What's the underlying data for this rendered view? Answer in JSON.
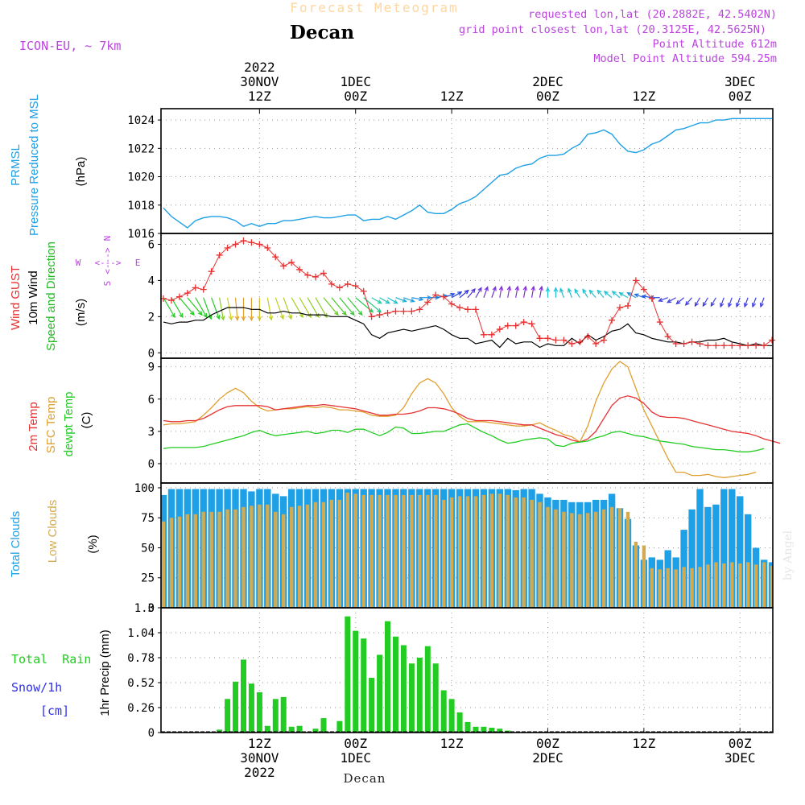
{
  "header": {
    "product": "Forecast Meteogram",
    "location": "Decan",
    "model": "ICON-EU, ~ 7km",
    "requested": "requested lon,lat (20.2882E, 42.5402N)",
    "gridpoint": "grid point closest lon,lat (20.3125E, 42.5625N)",
    "point_alt": "Point Altitude 612m",
    "model_alt": "Model Point Altitude 594.25m",
    "footer": "Decan",
    "credit": "by Angel"
  },
  "colors": {
    "pressure": "#1ea0e6",
    "gust": "#e63232",
    "wind": "#000000",
    "dir": "#22bb22",
    "t2m": "#e63232",
    "tsfc": "#e0a030",
    "dew": "#22cc22",
    "total_cloud": "#1ea0e6",
    "low_cloud": "#d4aa50",
    "rain": "#22cc22",
    "snow": "#3030e6",
    "compass": "#bb44dd"
  },
  "time_axis": {
    "top_labels": [
      {
        "h": 12,
        "lines": [
          "2022",
          "30NOV",
          "12Z"
        ]
      },
      {
        "h": 24,
        "lines": [
          "1DEC",
          "00Z"
        ]
      },
      {
        "h": 36,
        "lines": [
          "12Z"
        ]
      },
      {
        "h": 48,
        "lines": [
          "2DEC",
          "00Z"
        ]
      },
      {
        "h": 60,
        "lines": [
          "12Z"
        ]
      },
      {
        "h": 72,
        "lines": [
          "3DEC",
          "00Z"
        ]
      }
    ],
    "bottom_labels": [
      {
        "h": 12,
        "lines": [
          "12Z",
          "30NOV",
          "2022"
        ]
      },
      {
        "h": 24,
        "lines": [
          "00Z",
          "1DEC"
        ]
      },
      {
        "h": 36,
        "lines": [
          "12Z"
        ]
      },
      {
        "h": 48,
        "lines": [
          "00Z",
          "2DEC"
        ]
      },
      {
        "h": 60,
        "lines": [
          "12Z"
        ]
      },
      {
        "h": 72,
        "lines": [
          "00Z",
          "3DEC"
        ]
      }
    ],
    "hours_per_step": 1,
    "start_hour": 0,
    "end_hour": 76
  },
  "chart_data": [
    {
      "type": "line",
      "panel": "pressure",
      "ylabel": [
        "PRMSL",
        "Pressure Reduced to MSL"
      ],
      "units": "(hPa)",
      "yticks": [
        1016,
        1018,
        1020,
        1022,
        1024
      ],
      "ylim": [
        1016,
        1024.8
      ],
      "series": [
        {
          "values": [
            1017.8,
            1017.2,
            1016.8,
            1016.4,
            1016.9,
            1017.1,
            1017.2,
            1017.2,
            1017.1,
            1016.9,
            1016.5,
            1016.7,
            1016.5,
            1016.7,
            1016.7,
            1016.9,
            1016.9,
            1017.0,
            1017.1,
            1017.2,
            1017.1,
            1017.1,
            1017.2,
            1017.3,
            1017.3,
            1016.9,
            1017.0,
            1017.0,
            1017.2,
            1017.0,
            1017.3,
            1017.6,
            1018.0,
            1017.5,
            1017.4,
            1017.4,
            1017.7,
            1018.1,
            1018.3,
            1018.6,
            1019.1,
            1019.6,
            1020.1,
            1020.2,
            1020.6,
            1020.8,
            1020.9,
            1021.3,
            1021.5,
            1021.5,
            1021.6,
            1022.0,
            1022.3,
            1023.0,
            1023.1,
            1023.3,
            1023.0,
            1022.3,
            1021.8,
            1021.7,
            1021.9,
            1022.3,
            1022.5,
            1022.9,
            1023.3,
            1023.4,
            1023.6,
            1023.8,
            1023.8,
            1024.0,
            1024.0,
            1024.1,
            1024.1,
            1024.1,
            1024.1,
            1024.1,
            1024.1
          ]
        }
      ]
    },
    {
      "type": "line",
      "panel": "wind",
      "ylabel": [
        "Wind GUST",
        "10m Wind",
        "Speed and Direction"
      ],
      "units": "(m/s)",
      "yticks": [
        0,
        2,
        4,
        6
      ],
      "ylim": [
        -0.3,
        6.6
      ],
      "compass": {
        "w": "W",
        "e": "E",
        "n": "N",
        "s": "S",
        "arrow": "<--->"
      },
      "series": [
        {
          "name": "Wind GUST",
          "values": [
            3.0,
            2.9,
            3.1,
            3.3,
            3.6,
            3.5,
            4.5,
            5.4,
            5.8,
            6.0,
            6.2,
            6.1,
            6.0,
            5.8,
            5.3,
            4.8,
            5.0,
            4.6,
            4.3,
            4.2,
            4.4,
            3.8,
            3.6,
            3.8,
            3.7,
            3.4,
            2.0,
            2.1,
            2.2,
            2.3,
            2.3,
            2.3,
            2.4,
            2.8,
            3.2,
            3.1,
            2.7,
            2.5,
            2.4,
            2.4,
            1.0,
            1.0,
            1.3,
            1.5,
            1.5,
            1.7,
            1.6,
            0.8,
            0.8,
            0.7,
            0.7,
            0.5,
            0.6,
            0.9,
            0.5,
            0.7,
            1.8,
            2.5,
            2.6,
            4.0,
            3.5,
            3.0,
            1.7,
            0.9,
            0.5,
            0.5,
            0.6,
            0.5,
            0.4,
            0.4,
            0.4,
            0.4,
            0.4,
            0.4,
            0.4,
            0.4,
            0.7
          ]
        },
        {
          "name": "10m Wind",
          "values": [
            1.7,
            1.6,
            1.7,
            1.7,
            1.8,
            1.8,
            2.1,
            2.3,
            2.5,
            2.5,
            2.5,
            2.4,
            2.4,
            2.2,
            2.2,
            2.3,
            2.2,
            2.2,
            2.1,
            2.1,
            2.1,
            2.0,
            2.0,
            2.0,
            1.8,
            1.6,
            1.0,
            0.8,
            1.1,
            1.2,
            1.3,
            1.2,
            1.3,
            1.4,
            1.5,
            1.3,
            1.0,
            0.8,
            0.8,
            0.5,
            0.6,
            0.7,
            0.3,
            0.8,
            0.5,
            0.6,
            0.6,
            0.3,
            0.5,
            0.4,
            0.4,
            0.8,
            0.5,
            1.0,
            0.7,
            0.9,
            1.2,
            1.3,
            1.6,
            1.1,
            1.0,
            0.8,
            0.7,
            0.6,
            0.6,
            0.5,
            0.6,
            0.6,
            0.7,
            0.7,
            0.8,
            0.6,
            0.5,
            0.4,
            0.5,
            0.4,
            0.4
          ]
        },
        {
          "name": "Direction",
          "degrees": [
            330,
            330,
            320,
            320,
            330,
            340,
            340,
            350,
            350,
            355,
            0,
            0,
            0,
            350,
            340,
            340,
            330,
            330,
            330,
            330,
            320,
            320,
            320,
            320,
            310,
            310,
            300,
            300,
            300,
            290,
            290,
            280,
            270,
            270,
            260,
            250,
            240,
            230,
            220,
            210,
            200,
            200,
            190,
            190,
            190,
            190,
            190,
            190,
            180,
            180,
            160,
            160,
            150,
            150,
            140,
            140,
            130,
            130,
            120,
            120,
            110,
            100,
            90,
            70,
            60,
            50,
            40,
            30,
            30,
            30,
            20,
            20,
            20,
            20,
            20,
            20,
            20
          ],
          "colors": [
            "#22cc22",
            "#22cc22",
            "#22cc22",
            "#22cc22",
            "#22cc22",
            "#22cc22",
            "#22cc22",
            "#88cc22",
            "#d0d020",
            "#e0a030",
            "#e0a030",
            "#e0a030",
            "#d0c030",
            "#c0d020",
            "#c0d020",
            "#b0d020",
            "#a0d020",
            "#a0d020",
            "#88cc22",
            "#88cc22",
            "#66cc22",
            "#44cc22",
            "#33cc33",
            "#33cc33",
            "#22cc55",
            "#22cc88",
            "#22ccaa",
            "#20c0c0",
            "#20c0d0",
            "#20b0d0",
            "#20a0d8",
            "#2090e0",
            "#2090e0",
            "#2090e0",
            "#2070e0",
            "#2050e0",
            "#2040e0",
            "#3030e0",
            "#5030e0",
            "#6030e0",
            "#7030d8",
            "#7030d8",
            "#8030d0",
            "#8030d0",
            "#8030d0",
            "#8030d0",
            "#8030d0",
            "#8030d0",
            "#20c0d0",
            "#20c0d0",
            "#20c0d0",
            "#20c0d0",
            "#20c0d0",
            "#20c0d0",
            "#20c0d0",
            "#20c0d0",
            "#20c0d0",
            "#20c0d0",
            "#20c0d0",
            "#2090e0",
            "#2070e0",
            "#2050e0",
            "#2050e0",
            "#4040e0",
            "#4040e0",
            "#4040e0",
            "#4040e0",
            "#4040e0",
            "#4040e0",
            "#4040e0",
            "#4040e0",
            "#4040e0",
            "#4040e0",
            "#4040e0",
            "#4040e0",
            "#4040e0",
            "#4040e0"
          ]
        }
      ]
    },
    {
      "type": "line",
      "panel": "temperature",
      "ylabel": [
        "2m Temp",
        "SFC Temp",
        "dewpt Temp"
      ],
      "units": "(C)",
      "yticks": [
        0,
        3,
        6,
        9
      ],
      "ylim": [
        -1.8,
        9.8
      ],
      "series": [
        {
          "name": "2m Temp",
          "values": [
            4.0,
            3.9,
            3.9,
            4.0,
            4.0,
            4.2,
            4.6,
            5.0,
            5.3,
            5.4,
            5.4,
            5.4,
            5.4,
            5.3,
            5.0,
            5.1,
            5.2,
            5.3,
            5.4,
            5.4,
            5.5,
            5.4,
            5.3,
            5.2,
            5.1,
            4.9,
            4.7,
            4.5,
            4.5,
            4.6,
            4.6,
            4.7,
            4.9,
            5.2,
            5.2,
            5.1,
            4.9,
            4.6,
            4.2,
            4.0,
            4.0,
            4.0,
            3.9,
            3.8,
            3.7,
            3.6,
            3.6,
            3.3,
            3.0,
            2.7,
            2.5,
            2.2,
            2.0,
            2.3,
            3.0,
            4.2,
            5.4,
            6.1,
            6.3,
            6.1,
            5.6,
            4.8,
            4.4,
            4.3,
            4.3,
            4.2,
            4.0,
            3.8,
            3.6,
            3.4,
            3.2,
            3.0,
            2.9,
            2.8,
            2.6,
            2.3,
            2.1,
            1.9
          ]
        },
        {
          "name": "SFC Temp",
          "values": [
            3.6,
            3.7,
            3.7,
            3.8,
            3.9,
            4.5,
            5.2,
            6.0,
            6.6,
            7.0,
            6.6,
            5.8,
            5.2,
            4.9,
            5.0,
            5.1,
            5.1,
            5.2,
            5.3,
            5.2,
            5.3,
            5.2,
            5.0,
            5.0,
            4.9,
            4.8,
            4.5,
            4.4,
            4.4,
            4.5,
            5.2,
            6.5,
            7.5,
            7.9,
            7.5,
            6.5,
            5.2,
            4.4,
            3.9,
            3.9,
            3.9,
            3.8,
            3.7,
            3.6,
            3.5,
            3.5,
            3.6,
            3.8,
            3.4,
            3.1,
            2.7,
            2.5,
            2.0,
            3.5,
            5.8,
            7.5,
            8.8,
            9.5,
            9.0,
            7.0,
            5.0,
            3.5,
            2.0,
            0.5,
            -0.8,
            -0.8,
            -1.1,
            -1.1,
            -1.0,
            -1.2,
            -1.3,
            -1.2,
            -1.1,
            -1.0,
            -0.8
          ]
        },
        {
          "name": "dewpt Temp",
          "values": [
            1.4,
            1.5,
            1.5,
            1.5,
            1.5,
            1.6,
            1.8,
            2.0,
            2.2,
            2.4,
            2.6,
            2.9,
            3.1,
            2.8,
            2.6,
            2.7,
            2.8,
            2.9,
            3.0,
            2.8,
            2.9,
            3.1,
            3.1,
            2.9,
            3.2,
            3.2,
            2.9,
            2.6,
            2.9,
            3.4,
            3.3,
            2.8,
            2.8,
            2.9,
            3.0,
            3.0,
            3.3,
            3.6,
            3.7,
            3.3,
            2.9,
            2.6,
            2.2,
            1.9,
            2.0,
            2.2,
            2.3,
            2.4,
            2.3,
            1.7,
            1.6,
            1.9,
            2.0,
            2.1,
            2.4,
            2.6,
            2.9,
            3.0,
            2.8,
            2.6,
            2.5,
            2.3,
            2.1,
            2.0,
            1.9,
            1.8,
            1.6,
            1.5,
            1.4,
            1.3,
            1.3,
            1.2,
            1.1,
            1.1,
            1.2,
            1.4
          ]
        }
      ]
    },
    {
      "type": "bar",
      "panel": "clouds",
      "ylabel": [
        "Total Clouds",
        "Low Clouds"
      ],
      "units": "(%)",
      "yticks": [
        0,
        25,
        50,
        75,
        100
      ],
      "ylim": [
        0,
        104
      ],
      "series": [
        {
          "name": "Total Clouds",
          "values": [
            94,
            99,
            99,
            99,
            99,
            99,
            99,
            99,
            99,
            99,
            99,
            97,
            99,
            99,
            95,
            93,
            99,
            99,
            99,
            99,
            99,
            99,
            99,
            99,
            99,
            99,
            99,
            99,
            99,
            99,
            99,
            99,
            99,
            99,
            99,
            99,
            99,
            99,
            99,
            99,
            99,
            99,
            99,
            99,
            98,
            99,
            99,
            95,
            92,
            90,
            90,
            88,
            88,
            88,
            90,
            90,
            95,
            83,
            74,
            52,
            40,
            42,
            40,
            48,
            42,
            65,
            82,
            99,
            84,
            86,
            99,
            99,
            93,
            78,
            50,
            40,
            38,
            52
          ]
        },
        {
          "name": "Low Clouds",
          "values": [
            72,
            75,
            76,
            78,
            78,
            80,
            80,
            80,
            82,
            82,
            84,
            85,
            86,
            86,
            80,
            78,
            84,
            85,
            86,
            88,
            88,
            90,
            90,
            96,
            95,
            94,
            94,
            94,
            94,
            94,
            94,
            94,
            94,
            94,
            94,
            90,
            92,
            93,
            93,
            93,
            94,
            95,
            95,
            94,
            92,
            92,
            90,
            88,
            84,
            82,
            80,
            79,
            78,
            79,
            80,
            82,
            84,
            83,
            80,
            55,
            52,
            33,
            32,
            33,
            32,
            34,
            33,
            34,
            36,
            38,
            37,
            38,
            37,
            38,
            36,
            38,
            35,
            35
          ]
        }
      ]
    },
    {
      "type": "bar",
      "panel": "precip",
      "ylabel": [
        "Total  Rain",
        "Snow/1h",
        "[cm]"
      ],
      "units": "1hr Precip (mm)",
      "yticks": [
        "0",
        "0.26",
        "0.52",
        "0.78",
        "1.04",
        "1.3"
      ],
      "ylim": [
        0,
        1.3
      ],
      "series": [
        {
          "name": "Total Rain",
          "values": [
            0,
            0,
            0,
            0,
            0,
            0,
            0,
            0.03,
            0.35,
            0.53,
            0.76,
            0.51,
            0.42,
            0.07,
            0.35,
            0.37,
            0.06,
            0.07,
            0,
            0.04,
            0.15,
            0,
            0.12,
            1.21,
            1.06,
            0.98,
            0.57,
            0.81,
            1.16,
            1.0,
            0.91,
            0.72,
            0.78,
            0.9,
            0.72,
            0.44,
            0.35,
            0.21,
            0.11,
            0.06,
            0.06,
            0.05,
            0.04,
            0.02,
            0,
            0,
            0,
            0,
            0,
            0,
            0,
            0,
            0,
            0,
            0,
            0,
            0,
            0,
            0,
            0,
            0,
            0,
            0,
            0,
            0,
            0,
            0,
            0,
            0,
            0,
            0,
            0,
            0,
            0,
            0,
            0,
            0
          ]
        }
      ]
    }
  ]
}
